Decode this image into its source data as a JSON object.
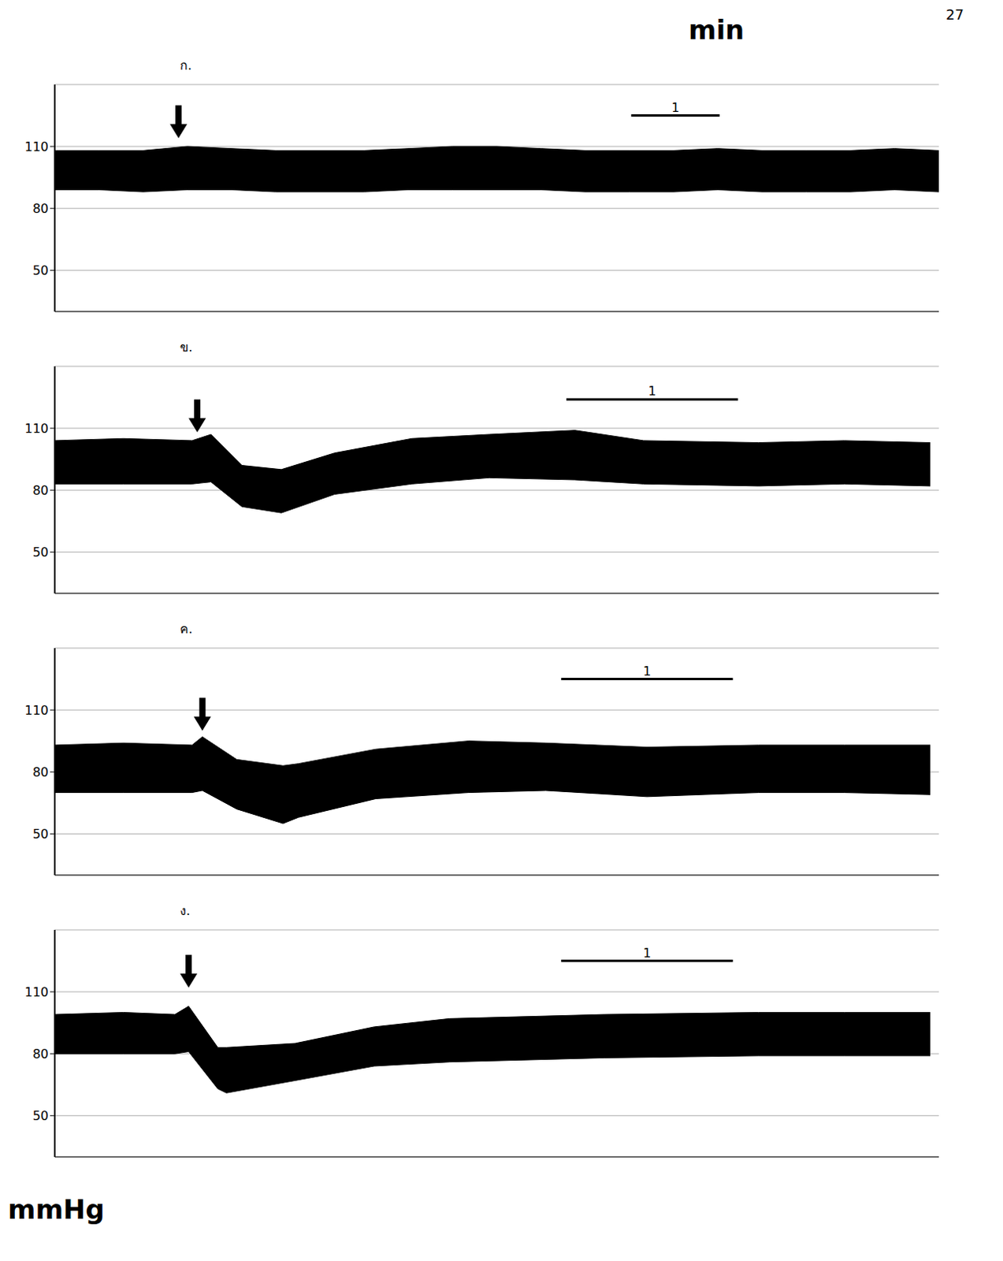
{
  "page": "27",
  "x_label": "min",
  "y_label": "mmHg",
  "chart_data": [
    {
      "type": "area",
      "title": "ก.",
      "color": "#000000",
      "xlim": [
        0,
        10
      ],
      "ylim": [
        30,
        140
      ],
      "yticks": [
        50,
        80,
        110
      ],
      "tick_labels": "y",
      "grid": true,
      "x": [
        0,
        0.5,
        1,
        1.5,
        2,
        2.5,
        3,
        3.5,
        4,
        4.5,
        5,
        5.5,
        6,
        6.5,
        7,
        7.5,
        8,
        8.5,
        9,
        9.5,
        10
      ],
      "high": [
        108,
        108,
        108,
        110,
        109,
        108,
        108,
        108,
        109,
        110,
        110,
        109,
        108,
        108,
        108,
        109,
        108,
        108,
        108,
        109,
        108
      ],
      "low": [
        89,
        89,
        88,
        89,
        89,
        88,
        88,
        88,
        89,
        89,
        89,
        89,
        88,
        88,
        88,
        89,
        88,
        88,
        88,
        89,
        88
      ],
      "arrow": {
        "x": 1.4,
        "y": 114
      },
      "scale_bar": {
        "x": [
          6.52,
          7.52
        ],
        "y": 125,
        "label": "1"
      }
    },
    {
      "type": "area",
      "title": "ข.",
      "color": "#000000",
      "xlim": [
        0,
        5.15
      ],
      "ylim": [
        30,
        140
      ],
      "yticks": [
        50,
        80,
        110
      ],
      "tick_labels": "y",
      "grid": true,
      "x": [
        0,
        0.4,
        0.8,
        0.91,
        1.09,
        1.32,
        1.63,
        2.08,
        2.53,
        3.03,
        3.43,
        4.1,
        4.6,
        5.1
      ],
      "high": [
        104,
        105,
        104,
        107,
        92,
        90,
        98,
        105,
        107,
        109,
        104,
        103,
        104,
        103
      ],
      "low": [
        83,
        83,
        83,
        84,
        72,
        69,
        78,
        83,
        86,
        85,
        83,
        82,
        83,
        82
      ],
      "arrow": {
        "x": 0.83,
        "y": 108
      },
      "scale_bar": {
        "x": [
          2.98,
          3.98
        ],
        "y": 124,
        "label": "1"
      }
    },
    {
      "type": "area",
      "title": "ค.",
      "color": "#000000",
      "xlim": [
        0,
        5.15
      ],
      "ylim": [
        30,
        140
      ],
      "yticks": [
        50,
        80,
        110
      ],
      "tick_labels": "y",
      "grid": true,
      "x": [
        0,
        0.4,
        0.8,
        0.86,
        1.06,
        1.33,
        1.42,
        1.87,
        2.41,
        2.86,
        3.45,
        4.1,
        4.6,
        5.1
      ],
      "high": [
        93,
        94,
        93,
        97,
        86,
        83,
        84,
        91,
        95,
        94,
        92,
        93,
        93,
        93
      ],
      "low": [
        70,
        70,
        70,
        71,
        62,
        55,
        58,
        67,
        70,
        71,
        68,
        70,
        70,
        69
      ],
      "arrow": {
        "x": 0.86,
        "y": 100
      },
      "scale_bar": {
        "x": [
          2.95,
          3.95
        ],
        "y": 125,
        "label": "1"
      }
    },
    {
      "type": "area",
      "title": "ง.",
      "color": "#000000",
      "xlim": [
        0,
        5.15
      ],
      "ylim": [
        30,
        140
      ],
      "yticks": [
        50,
        80,
        110
      ],
      "tick_labels": "y",
      "grid": true,
      "x": [
        0,
        0.4,
        0.7,
        0.78,
        0.95,
        1.0,
        1.4,
        1.86,
        2.3,
        3.2,
        4.1,
        4.6,
        5.1
      ],
      "high": [
        99,
        100,
        99,
        103,
        83,
        83,
        85,
        93,
        97,
        99,
        100,
        100,
        100
      ],
      "low": [
        80,
        80,
        80,
        81,
        63,
        61,
        67,
        74,
        76,
        78,
        79,
        79,
        79
      ],
      "arrow": {
        "x": 0.78,
        "y": 112
      },
      "scale_bar": {
        "x": [
          2.95,
          3.95
        ],
        "y": 125,
        "label": "1"
      }
    }
  ]
}
